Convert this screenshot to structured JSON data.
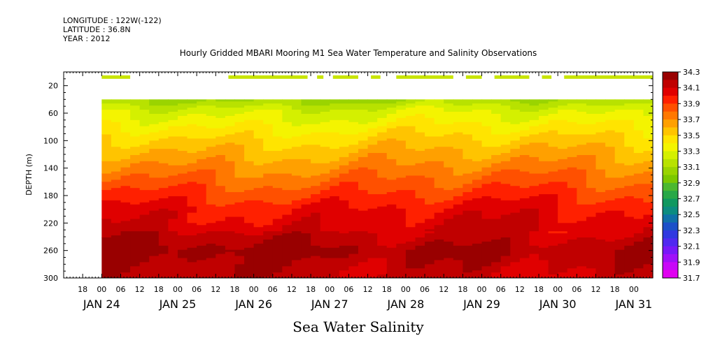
{
  "header": {
    "longitude": "LONGITUDE : 122W(-122)",
    "latitude": "LATITUDE : 36.8N",
    "year": "YEAR : 2012"
  },
  "chart_data": {
    "type": "heatmap",
    "title": "Hourly Gridded MBARI Mooring M1 Sea Water Temperature and Salinity Observations",
    "xlabel": "Sea Water Salinity",
    "ylabel": "DEPTH (m)",
    "x_range": [
      "2012-01-23T12:00",
      "2012-01-31T06:00"
    ],
    "ylim": [
      300,
      0
    ],
    "y_ticks": [
      20,
      60,
      100,
      140,
      180,
      220,
      260,
      300
    ],
    "x_hour_ticks": [
      "18",
      "00",
      "06",
      "12",
      "18",
      "00",
      "06",
      "12",
      "18",
      "00",
      "06",
      "12",
      "18",
      "00",
      "06",
      "12",
      "18",
      "00",
      "06",
      "12",
      "18",
      "00",
      "06",
      "12",
      "18",
      "00",
      "06",
      "12",
      "18",
      "00"
    ],
    "x_day_labels": [
      "JAN 24",
      "JAN 25",
      "JAN 26",
      "JAN 27",
      "JAN 28",
      "JAN 29",
      "JAN 30",
      "JAN 31"
    ],
    "data_start": "2012-01-24T00:00",
    "data_top_depth": 40,
    "surface_band_depth": [
      5,
      10
    ],
    "surface_band_segments": [
      [
        "2012-01-24T00:00",
        "2012-01-24T09:00"
      ],
      [
        "2012-01-25T16:00",
        "2012-01-26T17:00"
      ],
      [
        "2012-01-26T20:00",
        "2012-01-26T22:00"
      ],
      [
        "2012-01-27T01:00",
        "2012-01-27T09:00"
      ],
      [
        "2012-01-27T13:00",
        "2012-01-27T16:00"
      ],
      [
        "2012-01-27T21:00",
        "2012-01-28T15:00"
      ],
      [
        "2012-01-28T19:00",
        "2012-01-29T00:00"
      ],
      [
        "2012-01-29T04:00",
        "2012-01-29T15:00"
      ],
      [
        "2012-01-29T19:00",
        "2012-01-29T22:00"
      ],
      [
        "2012-01-30T02:00",
        "2012-01-31T06:00"
      ]
    ],
    "levels": [
      33.3,
      33.5,
      33.7,
      33.9,
      34.1,
      34.3
    ],
    "profile_depths": [
      40,
      55,
      75,
      95,
      115,
      135,
      165,
      200,
      230,
      245,
      260,
      275,
      300
    ],
    "profile_salinity": [
      33.2,
      33.36,
      33.48,
      33.6,
      33.7,
      33.8,
      33.95,
      34.12,
      34.2,
      34.27,
      34.33,
      34.28,
      34.22
    ],
    "colorbar": {
      "labels": [
        "34.3",
        "34.1",
        "33.9",
        "33.7",
        "33.5",
        "33.3",
        "33.1",
        "32.9",
        "32.7",
        "32.5",
        "32.3",
        "32.1",
        "31.9",
        "31.7"
      ],
      "colors": [
        "#990000",
        "#c00000",
        "#e00000",
        "#ff2000",
        "#ff5000",
        "#ff7800",
        "#ffa000",
        "#ffc400",
        "#ffe400",
        "#f4f400",
        "#d4f000",
        "#b8e200",
        "#9ad400",
        "#7cc800",
        "#4cb830",
        "#28a848",
        "#109860",
        "#0c8c80",
        "#1070a8",
        "#1c50c8",
        "#3038e0",
        "#5028f0",
        "#7818f8",
        "#a010f8",
        "#c808f8",
        "#e000f0"
      ]
    }
  }
}
